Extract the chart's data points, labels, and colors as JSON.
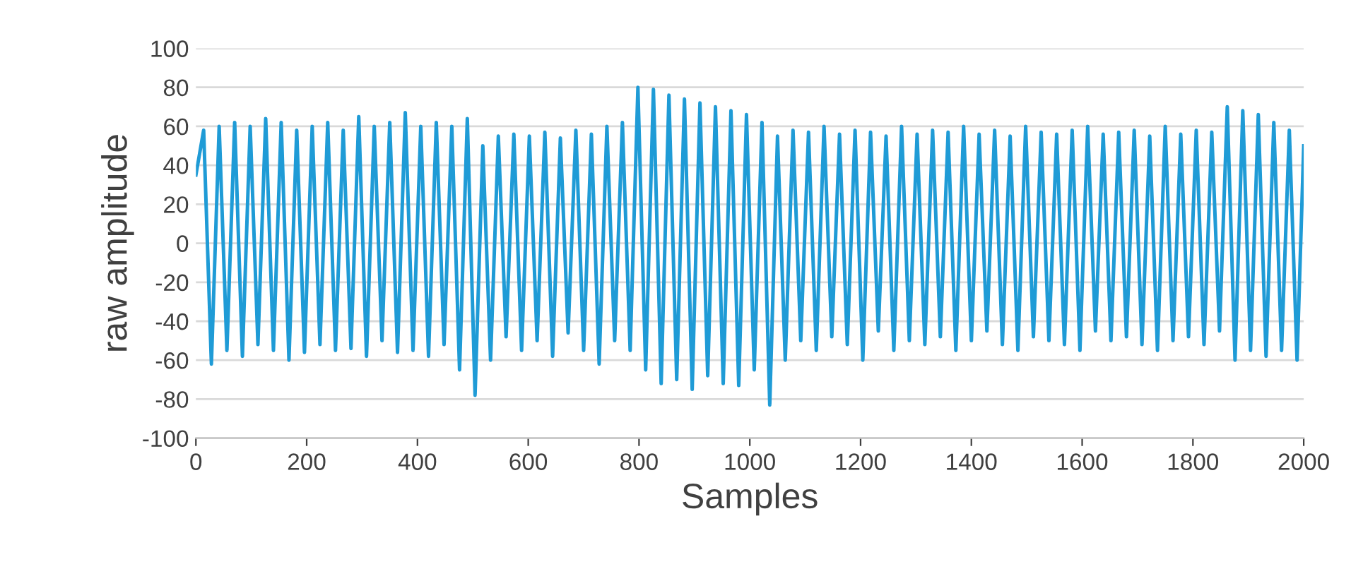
{
  "chart_data": {
    "type": "line",
    "xlabel": "Samples",
    "ylabel": "raw amplitude",
    "xlim": [
      0,
      2000
    ],
    "xticks": [
      0,
      200,
      400,
      600,
      800,
      1000,
      1200,
      1400,
      1600,
      1800,
      2000
    ],
    "ylim": [
      -100,
      100
    ],
    "yticks": [
      -100,
      -80,
      -60,
      -40,
      -20,
      0,
      20,
      40,
      60,
      80,
      100
    ],
    "grid": "y",
    "marker": "none",
    "line_style": "solid",
    "series": [
      {
        "color": "#1f9bd6",
        "x": [
          0,
          14,
          28,
          42,
          56,
          70,
          84,
          98,
          112,
          126,
          140,
          154,
          168,
          182,
          196,
          210,
          224,
          238,
          252,
          266,
          280,
          294,
          308,
          322,
          336,
          350,
          364,
          378,
          392,
          406,
          420,
          434,
          448,
          462,
          476,
          490,
          504,
          518,
          532,
          546,
          560,
          574,
          588,
          602,
          616,
          630,
          644,
          658,
          672,
          686,
          700,
          714,
          728,
          742,
          756,
          770,
          784,
          798,
          812,
          826,
          840,
          854,
          868,
          882,
          896,
          910,
          924,
          938,
          952,
          966,
          980,
          994,
          1008,
          1022,
          1036,
          1050,
          1064,
          1078,
          1092,
          1106,
          1120,
          1134,
          1148,
          1162,
          1176,
          1190,
          1204,
          1218,
          1232,
          1246,
          1260,
          1274,
          1288,
          1302,
          1316,
          1330,
          1344,
          1358,
          1372,
          1386,
          1400,
          1414,
          1428,
          1442,
          1456,
          1470,
          1484,
          1498,
          1512,
          1526,
          1540,
          1554,
          1568,
          1582,
          1596,
          1610,
          1624,
          1638,
          1652,
          1666,
          1680,
          1694,
          1708,
          1722,
          1736,
          1750,
          1764,
          1778,
          1792,
          1806,
          1820,
          1834,
          1848,
          1862,
          1876,
          1890,
          1904,
          1918,
          1932,
          1946,
          1960,
          1974,
          1988,
          2000
        ],
        "values": [
          35,
          58,
          -62,
          60,
          -55,
          62,
          -58,
          60,
          -52,
          64,
          -55,
          62,
          -60,
          58,
          -56,
          60,
          -52,
          62,
          -55,
          58,
          -54,
          65,
          -58,
          60,
          -50,
          62,
          -56,
          67,
          -55,
          60,
          -58,
          62,
          -52,
          60,
          -65,
          64,
          -78,
          50,
          -60,
          55,
          -48,
          56,
          -55,
          55,
          -50,
          57,
          -58,
          54,
          -46,
          58,
          -55,
          56,
          -62,
          60,
          -50,
          62,
          -55,
          80,
          -65,
          79,
          -72,
          76,
          -70,
          74,
          -75,
          72,
          -68,
          70,
          -72,
          68,
          -73,
          66,
          -65,
          62,
          -83,
          55,
          -60,
          58,
          -50,
          57,
          -55,
          60,
          -48,
          56,
          -52,
          58,
          -60,
          57,
          -45,
          55,
          -55,
          60,
          -50,
          56,
          -52,
          58,
          -48,
          57,
          -55,
          60,
          -50,
          56,
          -45,
          58,
          -52,
          55,
          -55,
          60,
          -48,
          57,
          -50,
          56,
          -52,
          58,
          -55,
          60,
          -45,
          56,
          -50,
          57,
          -48,
          58,
          -52,
          55,
          -55,
          60,
          -50,
          56,
          -48,
          58,
          -52,
          57,
          -45,
          70,
          -60,
          68,
          -55,
          66,
          -58,
          62,
          -55,
          58,
          -60,
          50
        ]
      }
    ]
  }
}
